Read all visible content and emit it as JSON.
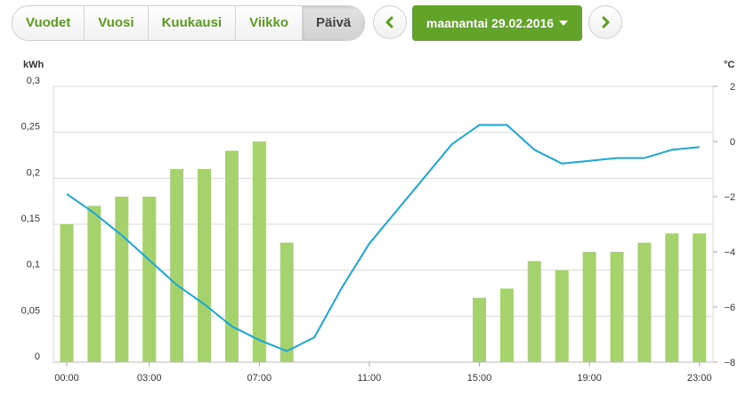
{
  "tabs": [
    {
      "label": "Vuodet"
    },
    {
      "label": "Vuosi"
    },
    {
      "label": "Kuukausi"
    },
    {
      "label": "Viikko"
    },
    {
      "label": "Päivä"
    }
  ],
  "active_tab": "Päivä",
  "date_label": "maanantai 29.02.2016",
  "icons": {
    "prev": "chevron-left-icon",
    "next": "chevron-right-icon",
    "date_dropdown": "caret-down-icon"
  },
  "colors": {
    "accent": "#62a42a",
    "bar": "#a6d26e",
    "line": "#1aa7d8",
    "grid": "#d9d9d9",
    "tab_text": "#5a9c1e"
  },
  "chart_data": {
    "type": "bar+line",
    "left_axis": {
      "label": "kWh",
      "ylim": [
        0,
        0.3
      ],
      "ticks": [
        "0",
        "0,05",
        "0,1",
        "0,15",
        "0,2",
        "0,25",
        "0,3"
      ]
    },
    "right_axis": {
      "label": "°C",
      "ylim": [
        -8,
        2
      ],
      "ticks": [
        "−8",
        "−6",
        "−4",
        "−2",
        "0",
        "2"
      ]
    },
    "x_tick_labels": [
      "00:00",
      "03:00",
      "07:00",
      "11:00",
      "15:00",
      "19:00",
      "23:00"
    ],
    "x_tick_hours": [
      0,
      3,
      7,
      11,
      15,
      19,
      23
    ],
    "hours": [
      0,
      1,
      2,
      3,
      4,
      5,
      6,
      7,
      8,
      9,
      10,
      11,
      12,
      13,
      14,
      15,
      16,
      17,
      18,
      19,
      20,
      21,
      22,
      23
    ],
    "series": [
      {
        "name": "kWh",
        "type": "bar",
        "axis": "left",
        "values": [
          0.15,
          0.17,
          0.18,
          0.18,
          0.21,
          0.21,
          0.23,
          0.24,
          0.13,
          null,
          null,
          null,
          null,
          null,
          null,
          0.07,
          0.08,
          0.11,
          0.1,
          0.12,
          0.12,
          0.13,
          0.14,
          0.14
        ]
      },
      {
        "name": "°C",
        "type": "line",
        "axis": "right",
        "values": [
          -1.9,
          -2.6,
          -3.4,
          -4.3,
          -5.2,
          -5.9,
          -6.7,
          -7.2,
          -7.6,
          -7.1,
          -5.3,
          -3.7,
          -2.5,
          -1.3,
          -0.1,
          0.6,
          0.6,
          -0.3,
          -0.8,
          -0.7,
          -0.6,
          -0.6,
          -0.3,
          -0.2
        ]
      }
    ],
    "grid": true
  }
}
